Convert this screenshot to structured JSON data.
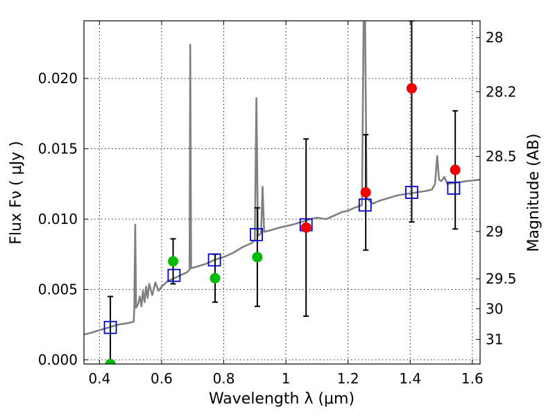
{
  "chart_data": {
    "type": "scatter",
    "xlabel": "Wavelength  λ (μm)",
    "ylabel": "Flux  Fν  ( μJy )",
    "y2label": "Magnitude (AB)",
    "xlim": [
      0.35,
      1.625
    ],
    "ylim": [
      -0.0003,
      0.0241
    ],
    "grid": true,
    "x_ticks": [
      {
        "v": 0.4,
        "label": "0.4"
      },
      {
        "v": 0.6,
        "label": "0.6"
      },
      {
        "v": 0.8,
        "label": "0.8"
      },
      {
        "v": 1.0,
        "label": "1"
      },
      {
        "v": 1.2,
        "label": "1.2"
      },
      {
        "v": 1.4,
        "label": "1.4"
      },
      {
        "v": 1.6,
        "label": "1.6"
      }
    ],
    "y_ticks": [
      {
        "v": 0.0,
        "label": "0.000"
      },
      {
        "v": 0.005,
        "label": "0.005"
      },
      {
        "v": 0.01,
        "label": "0.010"
      },
      {
        "v": 0.015,
        "label": "0.015"
      },
      {
        "v": 0.02,
        "label": "0.020"
      }
    ],
    "y2_ticks": [
      {
        "mag": 28,
        "label": "28"
      },
      {
        "mag": 28.2,
        "label": "28.2"
      },
      {
        "mag": 28.5,
        "label": "28.5"
      },
      {
        "mag": 29,
        "label": "29"
      },
      {
        "mag": 29.5,
        "label": "29.5"
      },
      {
        "mag": 30,
        "label": "30"
      },
      {
        "mag": 31,
        "label": "31"
      }
    ],
    "model_sed": {
      "color": "#808080",
      "points": [
        [
          0.35,
          0.0018
        ],
        [
          0.37,
          0.0019
        ],
        [
          0.4,
          0.0021
        ],
        [
          0.43,
          0.0023
        ],
        [
          0.46,
          0.0025
        ],
        [
          0.49,
          0.0026
        ],
        [
          0.51,
          0.0027
        ],
        [
          0.512,
          0.0037
        ],
        [
          0.515,
          0.0096
        ],
        [
          0.518,
          0.0037
        ],
        [
          0.525,
          0.004
        ],
        [
          0.53,
          0.0045
        ],
        [
          0.535,
          0.0038
        ],
        [
          0.54,
          0.0049
        ],
        [
          0.545,
          0.0041
        ],
        [
          0.55,
          0.0052
        ],
        [
          0.555,
          0.0044
        ],
        [
          0.56,
          0.0054
        ],
        [
          0.57,
          0.0046
        ],
        [
          0.58,
          0.0055
        ],
        [
          0.59,
          0.0049
        ],
        [
          0.6,
          0.0052
        ],
        [
          0.62,
          0.0056
        ],
        [
          0.64,
          0.0058
        ],
        [
          0.66,
          0.006
        ],
        [
          0.68,
          0.0062
        ],
        [
          0.69,
          0.0064
        ],
        [
          0.692,
          0.0224
        ],
        [
          0.695,
          0.0065
        ],
        [
          0.71,
          0.0066
        ],
        [
          0.74,
          0.0068
        ],
        [
          0.77,
          0.0071
        ],
        [
          0.8,
          0.0073
        ],
        [
          0.83,
          0.0076
        ],
        [
          0.86,
          0.008
        ],
        [
          0.89,
          0.0083
        ],
        [
          0.9,
          0.0085
        ],
        [
          0.905,
          0.0186
        ],
        [
          0.91,
          0.0088
        ],
        [
          0.92,
          0.009
        ],
        [
          0.925,
          0.0123
        ],
        [
          0.93,
          0.0091
        ],
        [
          0.95,
          0.0092
        ],
        [
          0.98,
          0.0094
        ],
        [
          1.0,
          0.0095
        ],
        [
          1.02,
          0.0096
        ],
        [
          1.05,
          0.0098
        ],
        [
          1.08,
          0.01
        ],
        [
          1.1,
          0.0101
        ],
        [
          1.13,
          0.01
        ],
        [
          1.15,
          0.0102
        ],
        [
          1.18,
          0.0105
        ],
        [
          1.2,
          0.0106
        ],
        [
          1.22,
          0.0108
        ],
        [
          1.245,
          0.011
        ],
        [
          1.25,
          0.024
        ],
        [
          1.255,
          0.024
        ],
        [
          1.26,
          0.0115
        ],
        [
          1.28,
          0.0111
        ],
        [
          1.3,
          0.0113
        ],
        [
          1.33,
          0.0115
        ],
        [
          1.36,
          0.0117
        ],
        [
          1.39,
          0.0118
        ],
        [
          1.42,
          0.0119
        ],
        [
          1.45,
          0.012
        ],
        [
          1.47,
          0.0121
        ],
        [
          1.48,
          0.0125
        ],
        [
          1.487,
          0.0145
        ],
        [
          1.493,
          0.0128
        ],
        [
          1.5,
          0.0127
        ],
        [
          1.51,
          0.013
        ],
        [
          1.52,
          0.0125
        ],
        [
          1.55,
          0.0126
        ],
        [
          1.58,
          0.0127
        ],
        [
          1.625,
          0.0128
        ]
      ]
    },
    "series": [
      {
        "marker": "open-square",
        "color": "#0000cc",
        "points": [
          {
            "x": 0.435,
            "y": 0.0023
          },
          {
            "x": 0.64,
            "y": 0.006
          },
          {
            "x": 0.77,
            "y": 0.0071
          },
          {
            "x": 0.905,
            "y": 0.0089
          },
          {
            "x": 1.065,
            "y": 0.0096
          },
          {
            "x": 1.255,
            "y": 0.011
          },
          {
            "x": 1.405,
            "y": 0.0119
          },
          {
            "x": 1.54,
            "y": 0.0122
          }
        ]
      },
      {
        "marker": "circle",
        "color": "#00bb00",
        "points": [
          {
            "x": 0.435,
            "y": -0.0003,
            "yerr": [
              0.0003,
              0.0048
            ]
          },
          {
            "x": 0.637,
            "y": 0.007,
            "yerr": [
              0.0016,
              0.0016
            ]
          },
          {
            "x": 0.772,
            "y": 0.0058,
            "yerr": [
              0.0017,
              0.0017
            ]
          },
          {
            "x": 0.908,
            "y": 0.0073,
            "yerr": [
              0.0035,
              0.0035
            ]
          }
        ]
      },
      {
        "marker": "circle",
        "color": "#ee0000",
        "points": [
          {
            "x": 1.065,
            "y": 0.0094,
            "yerr": [
              0.0063,
              0.0063
            ]
          },
          {
            "x": 1.257,
            "y": 0.0119,
            "yerr": [
              0.0041,
              0.0041
            ]
          },
          {
            "x": 1.405,
            "y": 0.0193,
            "yerr": [
              0.0095,
              0.0048
            ]
          },
          {
            "x": 1.545,
            "y": 0.0135,
            "yerr": [
              0.0042,
              0.0042
            ]
          }
        ]
      }
    ]
  }
}
